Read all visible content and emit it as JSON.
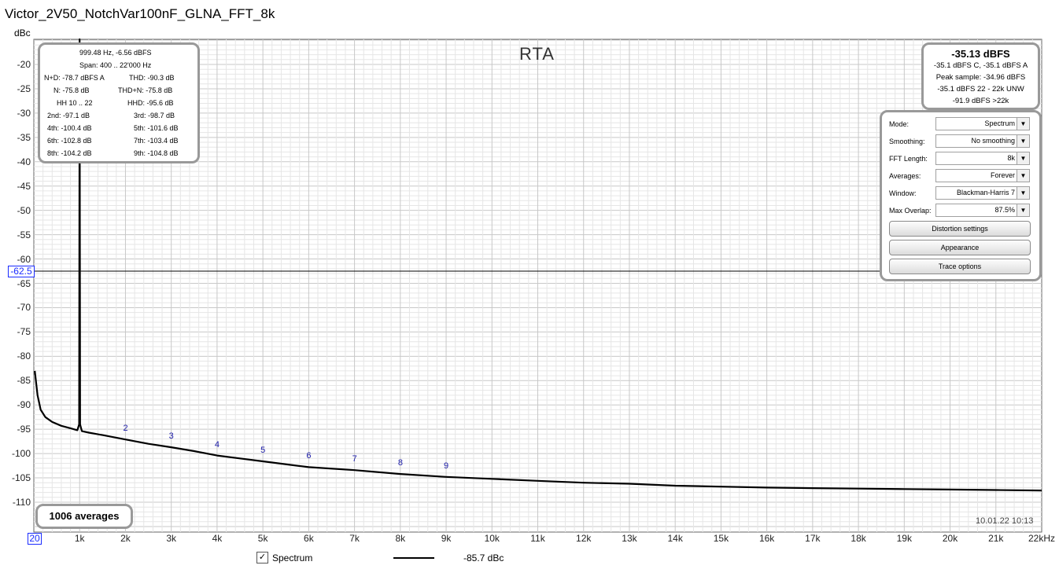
{
  "window": {
    "title": "Victor_2V50_NotchVar100nF_GLNA_FFT_8k"
  },
  "graph": {
    "title": "RTA",
    "y_unit": "dBc",
    "y_cursor": "-62.5",
    "x_cursor": "20",
    "timestamp": "10.01.22 10:13",
    "averages_label": "1006 averages"
  },
  "stats": {
    "line1": "999.48 Hz, -6.56 dBFS",
    "line2": "Span: 400 .. 22'000 Hz",
    "nd": "N+D: -78.7 dBFS A",
    "thd": "THD: -90.3 dB",
    "n": "N: -75.8 dB",
    "thdn": "THD+N: -75.8 dB",
    "hh": "HH 10 .. 22",
    "hhd": "HHD: -95.6 dB",
    "h2": "2nd: -97.1 dB",
    "h3": "3rd: -98.7 dB",
    "h4": "4th: -100.4 dB",
    "h5": "5th: -101.6 dB",
    "h6": "6th: -102.8 dB",
    "h7": "7th: -103.4 dB",
    "h8": "8th: -104.2 dB",
    "h9": "9th: -104.8 dB"
  },
  "level": {
    "main": "-35.13 dBFS",
    "l1": "-35.1 dBFS C, -35.1 dBFS A",
    "l2": "Peak sample: -34.96 dBFS",
    "l3": "-35.1 dBFS 22 - 22k UNW",
    "l4": "-91.9 dBFS >22k"
  },
  "controls": {
    "mode_label": "Mode:",
    "mode_value": "Spectrum",
    "smoothing_label": "Smoothing:",
    "smoothing_value": "No  smoothing",
    "fft_label": "FFT Length:",
    "fft_value": "8k",
    "averages_label": "Averages:",
    "averages_value": "Forever",
    "window_label": "Window:",
    "window_value": "Blackman-Harris 7",
    "overlap_label": "Max Overlap:",
    "overlap_value": "87.5%",
    "distortion_button": "Distortion settings",
    "appearance_button": "Appearance",
    "trace_button": "Trace options"
  },
  "legend": {
    "name": "Spectrum",
    "checked": true,
    "checkmark": "✓",
    "value": "-85.7 dBc",
    "color": "#000000"
  },
  "colors": {
    "cursor": "#1a2bff",
    "harmonic_label": "#1a1aa8",
    "trace": "#000000",
    "grid_minor": "#e6e6e6",
    "grid_major": "#c8c8c8"
  },
  "harmonic_labels": [
    "2",
    "3",
    "4",
    "5",
    "6",
    "7",
    "8",
    "9"
  ],
  "chart_data": {
    "type": "line",
    "xlabel": "",
    "ylabel": "dBc",
    "xlim": [
      0,
      22000
    ],
    "ylim": [
      -115,
      -15
    ],
    "x_ticks": [
      20,
      1000,
      2000,
      3000,
      4000,
      5000,
      6000,
      7000,
      8000,
      9000,
      10000,
      11000,
      12000,
      13000,
      14000,
      15000,
      16000,
      17000,
      18000,
      19000,
      20000,
      21000,
      22000
    ],
    "x_tick_labels": [
      "20",
      "1k",
      "2k",
      "3k",
      "4k",
      "5k",
      "6k",
      "7k",
      "8k",
      "9k",
      "10k",
      "11k",
      "12k",
      "13k",
      "14k",
      "15k",
      "16k",
      "17k",
      "18k",
      "19k",
      "20k",
      "21k",
      "22kHz"
    ],
    "y_ticks": [
      -20,
      -25,
      -30,
      -35,
      -40,
      -45,
      -50,
      -55,
      -60,
      -65,
      -70,
      -75,
      -80,
      -85,
      -90,
      -95,
      -100,
      -105,
      -110
    ],
    "y_tick_labels": [
      "-20",
      "-25",
      "-30",
      "-35",
      "-40",
      "-45",
      "-50",
      "-55",
      "-60",
      "-65",
      "-70",
      "-75",
      "-80",
      "-85",
      "-90",
      "-95",
      "-100",
      "-105",
      "-110"
    ],
    "cursor_y": -62.5,
    "series": [
      {
        "name": "Spectrum",
        "x": [
          20,
          80,
          150,
          250,
          400,
          600,
          800,
          950,
          990,
          999.48,
          1010,
          1050,
          1200,
          1500,
          2000,
          2500,
          3000,
          3500,
          4000,
          4500,
          5000,
          6000,
          7000,
          8000,
          9000,
          10000,
          11000,
          12000,
          13000,
          14000,
          15000,
          16000,
          17000,
          18000,
          19000,
          20000,
          21000,
          22000
        ],
        "y": [
          -83,
          -88,
          -91,
          -92.5,
          -93.5,
          -94.3,
          -94.8,
          -95.2,
          -94,
          0,
          -94,
          -95.4,
          -95.7,
          -96.2,
          -97.1,
          -98,
          -98.7,
          -99.5,
          -100.4,
          -101,
          -101.6,
          -102.8,
          -103.4,
          -104.2,
          -104.8,
          -105.2,
          -105.6,
          -106,
          -106.2,
          -106.6,
          -106.8,
          -107,
          -107.1,
          -107.2,
          -107.3,
          -107.4,
          -107.5,
          -107.6
        ]
      }
    ],
    "harmonics": [
      {
        "label": "2",
        "x": 2000,
        "y": -97.1
      },
      {
        "label": "3",
        "x": 3000,
        "y": -98.7
      },
      {
        "label": "4",
        "x": 4000,
        "y": -100.4
      },
      {
        "label": "5",
        "x": 5000,
        "y": -101.6
      },
      {
        "label": "6",
        "x": 6000,
        "y": -102.8
      },
      {
        "label": "7",
        "x": 7000,
        "y": -103.4
      },
      {
        "label": "8",
        "x": 8000,
        "y": -104.2
      },
      {
        "label": "9",
        "x": 9000,
        "y": -104.8
      }
    ],
    "grid": true
  }
}
